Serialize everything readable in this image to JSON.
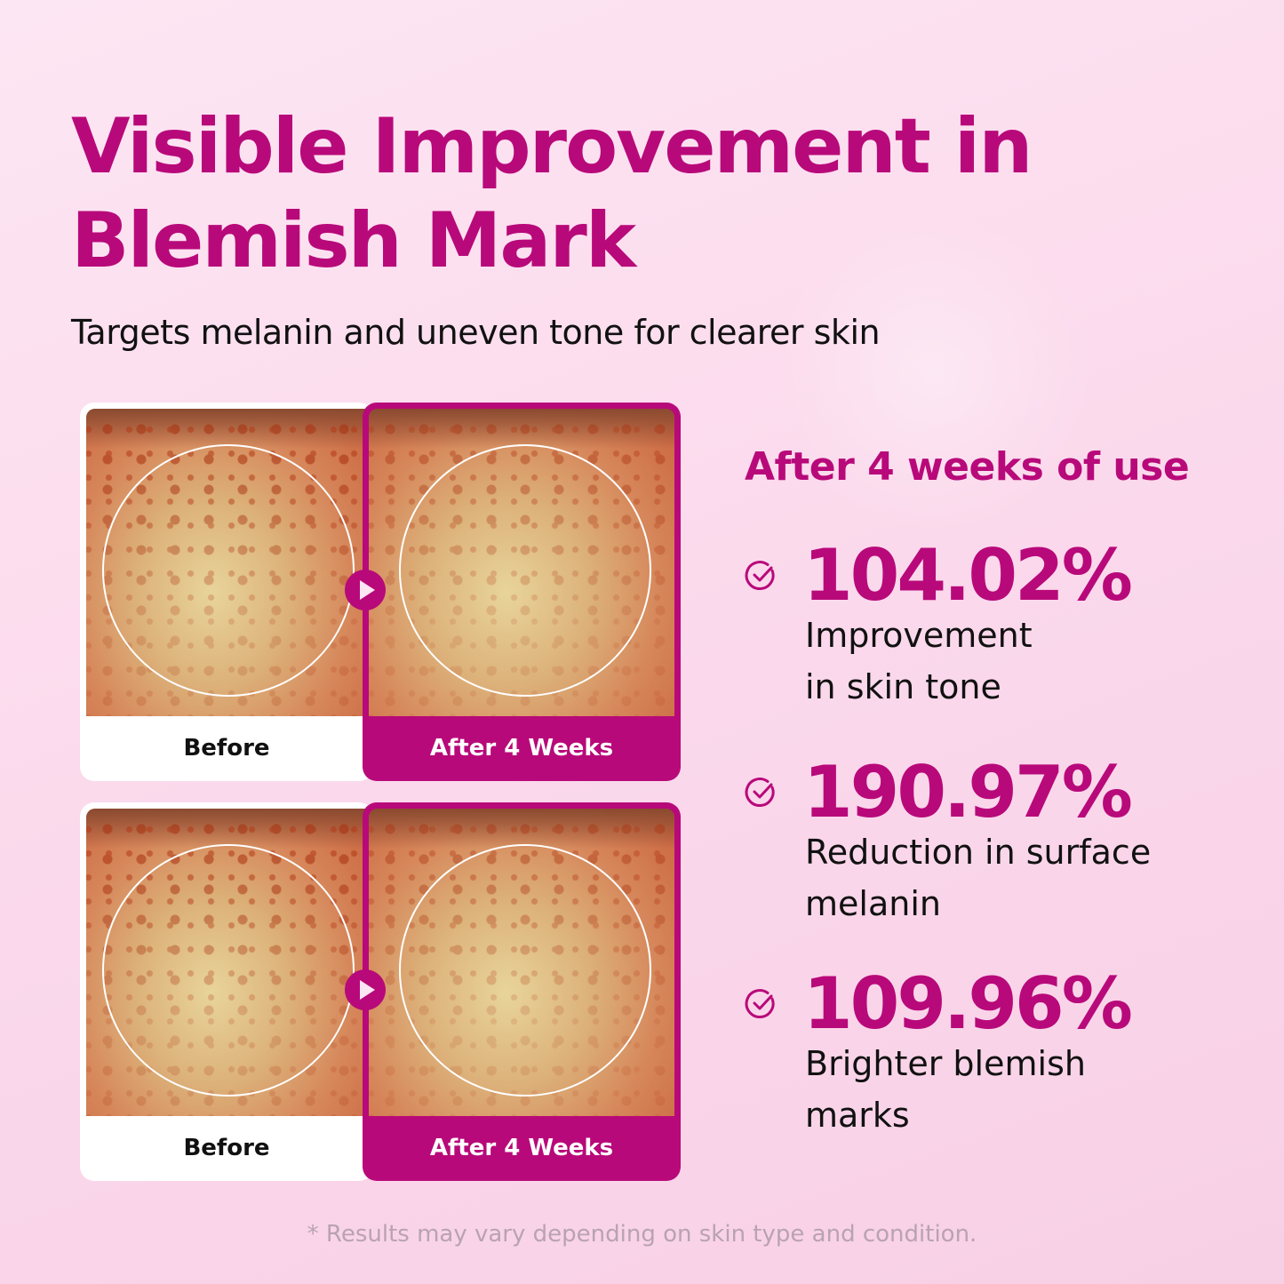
{
  "title_line1": "Visible Improvement in",
  "title_line2": "Blemish Mark",
  "subtitle": "Targets melanin and uneven tone for clearer skin",
  "comparisons": [
    {
      "before_label": "Before",
      "after_label": "After 4 Weeks"
    },
    {
      "before_label": "Before",
      "after_label": "After 4 Weeks"
    }
  ],
  "results": {
    "heading": "After 4 weeks of use",
    "stats": [
      {
        "value": "104.02%",
        "line1": "Improvement",
        "line2": "in skin tone",
        "icon": "check-circle-icon"
      },
      {
        "value": "190.97%",
        "line1": "Reduction in surface",
        "line2": "melanin",
        "icon": "check-circle-icon"
      },
      {
        "value": "109.96%",
        "line1": "Brighter blemish",
        "line2": "marks",
        "icon": "check-circle-icon"
      }
    ]
  },
  "disclaimer": "* Results may vary depending on skin type and condition.",
  "colors": {
    "accent": "#b8097a",
    "background": "#fbd9ec"
  }
}
